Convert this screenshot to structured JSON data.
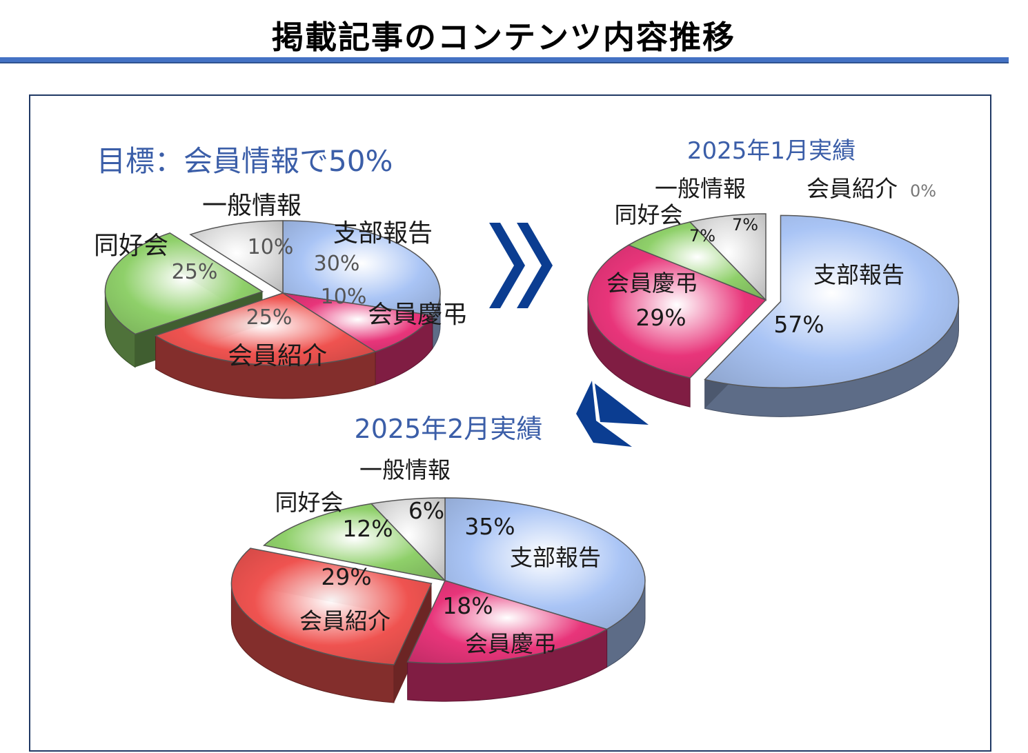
{
  "page_title": "掲載記事のコンテンツ内容推移",
  "colors": {
    "rule": "#4472c4",
    "frame": "#1f3864",
    "heading": "#3b5ea8",
    "arrow": "#0b3d91",
    "branch": "#a9c4f5",
    "celebration": "#e8357a",
    "member": "#ef5350",
    "hobby": "#8fd06a",
    "general": "#dcdcdc"
  },
  "chart_data": [
    {
      "type": "pie",
      "title": "目標：会員情報で50%",
      "slices": [
        {
          "label": "支部報告",
          "value": 30,
          "value_label": "30%",
          "color": "#a9c4f5"
        },
        {
          "label": "会員慶弔",
          "value": 10,
          "value_label": "10%",
          "color": "#e8357a"
        },
        {
          "label": "会員紹介",
          "value": 25,
          "value_label": "25%",
          "color": "#ef5350"
        },
        {
          "label": "同好会",
          "value": 25,
          "value_label": "25%",
          "color": "#8fd06a"
        },
        {
          "label": "一般情報",
          "value": 10,
          "value_label": "10%",
          "color": "#dcdcdc"
        }
      ]
    },
    {
      "type": "pie",
      "title": "2025年1月実績",
      "slices": [
        {
          "label": "支部報告",
          "value": 57,
          "value_label": "57%",
          "color": "#a9c4f5"
        },
        {
          "label": "会員慶弔",
          "value": 29,
          "value_label": "29%",
          "color": "#e8357a"
        },
        {
          "label": "会員紹介",
          "value": 0,
          "value_label": "0%",
          "color": "#ef5350"
        },
        {
          "label": "同好会",
          "value": 7,
          "value_label": "7%",
          "color": "#8fd06a"
        },
        {
          "label": "一般情報",
          "value": 7,
          "value_label": "7%",
          "color": "#dcdcdc"
        }
      ]
    },
    {
      "type": "pie",
      "title": "2025年2月実績",
      "slices": [
        {
          "label": "支部報告",
          "value": 35,
          "value_label": "35%",
          "color": "#a9c4f5"
        },
        {
          "label": "会員慶弔",
          "value": 18,
          "value_label": "18%",
          "color": "#e8357a"
        },
        {
          "label": "会員紹介",
          "value": 29,
          "value_label": "29%",
          "color": "#ef5350"
        },
        {
          "label": "同好会",
          "value": 12,
          "value_label": "12%",
          "color": "#8fd06a"
        },
        {
          "label": "一般情報",
          "value": 6,
          "value_label": "6%",
          "color": "#dcdcdc"
        }
      ]
    }
  ]
}
